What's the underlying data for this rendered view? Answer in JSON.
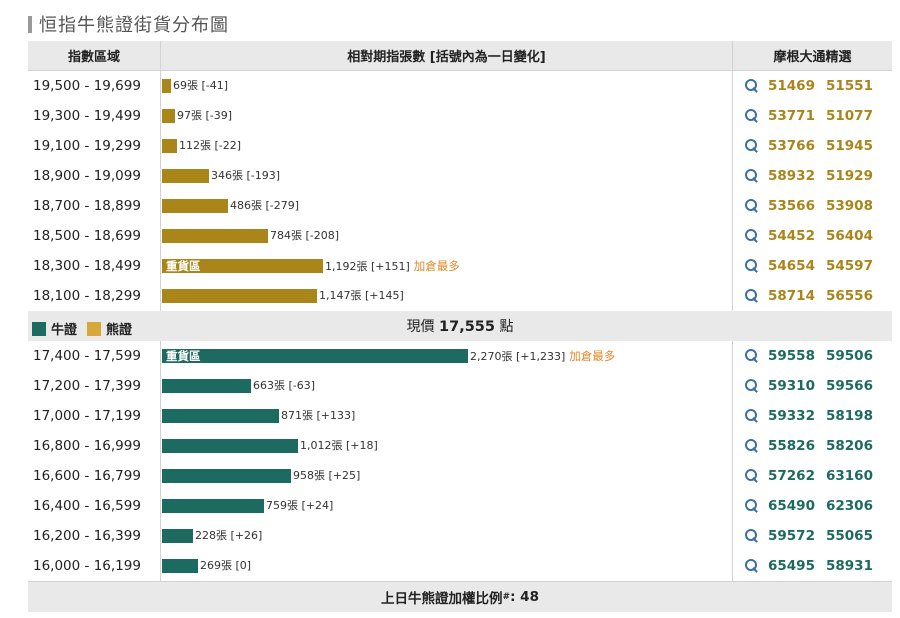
{
  "title": "恒指牛熊證街貨分布圖",
  "header": {
    "col_range": "指數區域",
    "col_outstanding": "相對期指張數 [括號內為一日變化]",
    "col_codes": "摩根大通精選"
  },
  "legend": {
    "bull": "牛證",
    "bear": "熊證"
  },
  "current_price": {
    "prefix": "現價",
    "value": "17,555",
    "suffix": "點"
  },
  "footer": {
    "text": "上日牛熊證加權比例",
    "mark": "#",
    "value": ": 48"
  },
  "colors": {
    "bear": "#a9851a",
    "bull": "#1d6a60",
    "accent": "#e08a2a"
  },
  "chart_data": {
    "type": "bar",
    "orientation": "horizontal",
    "unit": "張",
    "bear_rows": [
      {
        "range": "19,500 - 19,699",
        "value": 69,
        "label": "69張 [-41]",
        "codes": [
          "51469",
          "51551"
        ]
      },
      {
        "range": "19,300 - 19,499",
        "value": 97,
        "label": "97張 [-39]",
        "codes": [
          "53771",
          "51077"
        ]
      },
      {
        "range": "19,100 - 19,299",
        "value": 112,
        "label": "112張 [-22]",
        "codes": [
          "53766",
          "51945"
        ]
      },
      {
        "range": "18,900 - 19,099",
        "value": 346,
        "label": "346張 [-193]",
        "codes": [
          "58932",
          "51929"
        ]
      },
      {
        "range": "18,700 - 18,899",
        "value": 486,
        "label": "486張 [-279]",
        "codes": [
          "53566",
          "53908"
        ]
      },
      {
        "range": "18,500 - 18,699",
        "value": 784,
        "label": "784張 [-208]",
        "codes": [
          "54452",
          "56404"
        ]
      },
      {
        "range": "18,300 - 18,499",
        "value": 1192,
        "label": "1,192張 [+151]",
        "tag": "重貨區",
        "note": "加倉最多",
        "codes": [
          "54654",
          "54597"
        ]
      },
      {
        "range": "18,100 - 18,299",
        "value": 1147,
        "label": "1,147張 [+145]",
        "codes": [
          "58714",
          "56556"
        ]
      }
    ],
    "bull_rows": [
      {
        "range": "17,400 - 17,599",
        "value": 2270,
        "label": "2,270張 [+1,233]",
        "tag": "重貨區",
        "note": "加倉最多",
        "codes": [
          "59558",
          "59506"
        ]
      },
      {
        "range": "17,200 - 17,399",
        "value": 663,
        "label": "663張 [-63]",
        "codes": [
          "59310",
          "59566"
        ]
      },
      {
        "range": "17,000 - 17,199",
        "value": 871,
        "label": "871張 [+133]",
        "codes": [
          "59332",
          "58198"
        ]
      },
      {
        "range": "16,800 - 16,999",
        "value": 1012,
        "label": "1,012張 [+18]",
        "codes": [
          "55826",
          "58206"
        ]
      },
      {
        "range": "16,600 - 16,799",
        "value": 958,
        "label": "958張 [+25]",
        "codes": [
          "57262",
          "63160"
        ]
      },
      {
        "range": "16,400 - 16,599",
        "value": 759,
        "label": "759張 [+24]",
        "codes": [
          "65490",
          "62306"
        ]
      },
      {
        "range": "16,200 - 16,399",
        "value": 228,
        "label": "228張 [+26]",
        "codes": [
          "59572",
          "55065"
        ]
      },
      {
        "range": "16,000 - 16,199",
        "value": 269,
        "label": "269張 [0]",
        "codes": [
          "65495",
          "58931"
        ]
      }
    ]
  }
}
